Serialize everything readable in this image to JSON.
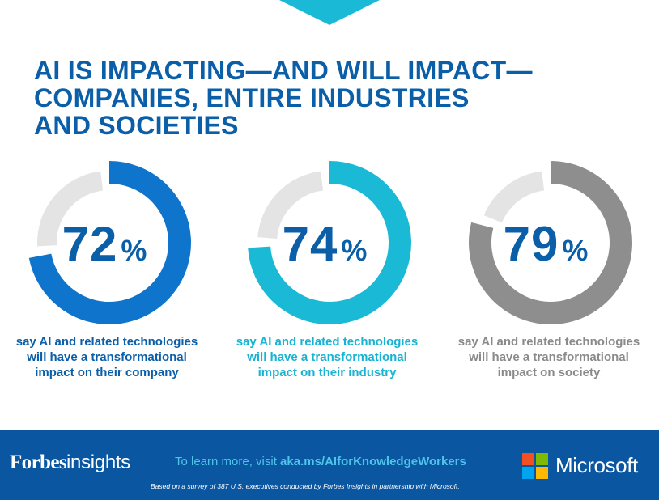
{
  "header": {
    "title_lines": [
      "AI IS IMPACTING—AND WILL IMPACT—",
      "COMPANIES, ENTIRE INDUSTRIES",
      "AND SOCIETIES"
    ]
  },
  "chart_data": {
    "type": "donut",
    "unit": "%",
    "items": [
      {
        "value": 72,
        "value_label": "72",
        "caption_lines": [
          "say AI and related technologies",
          "will have a transformational",
          "impact on their company"
        ],
        "color": "#0f74cc",
        "caption_color": "#0b5fa8"
      },
      {
        "value": 74,
        "value_label": "74",
        "caption_lines": [
          "say AI and related technologies",
          "will have a transformational",
          "impact on their industry"
        ],
        "color": "#1ab9d6",
        "caption_color": "#18b3d2"
      },
      {
        "value": 79,
        "value_label": "79",
        "caption_lines": [
          "say AI and related technologies",
          "will have a transformational",
          "impact on society"
        ],
        "color": "#8e8e8e",
        "caption_color": "#8a8a8a"
      }
    ],
    "track_color": "#e4e4e4",
    "value_text_color": "#0b5fa8"
  },
  "footer": {
    "forbes_brand": "Forbes",
    "forbes_sub": "insights",
    "learn_prefix": "To learn more, visit ",
    "learn_link": "aka.ms/AIforKnowledgeWorkers",
    "survey_note": "Based on a survey of 387 U.S. executives conducted by Forbes Insights in partnership with Microsoft.",
    "microsoft_word": "Microsoft",
    "background": "#0a56a0",
    "accent": "#4fc3ea"
  },
  "colors": {
    "headline": "#0b5fa8",
    "top_chevron": "#1ab9d6"
  }
}
